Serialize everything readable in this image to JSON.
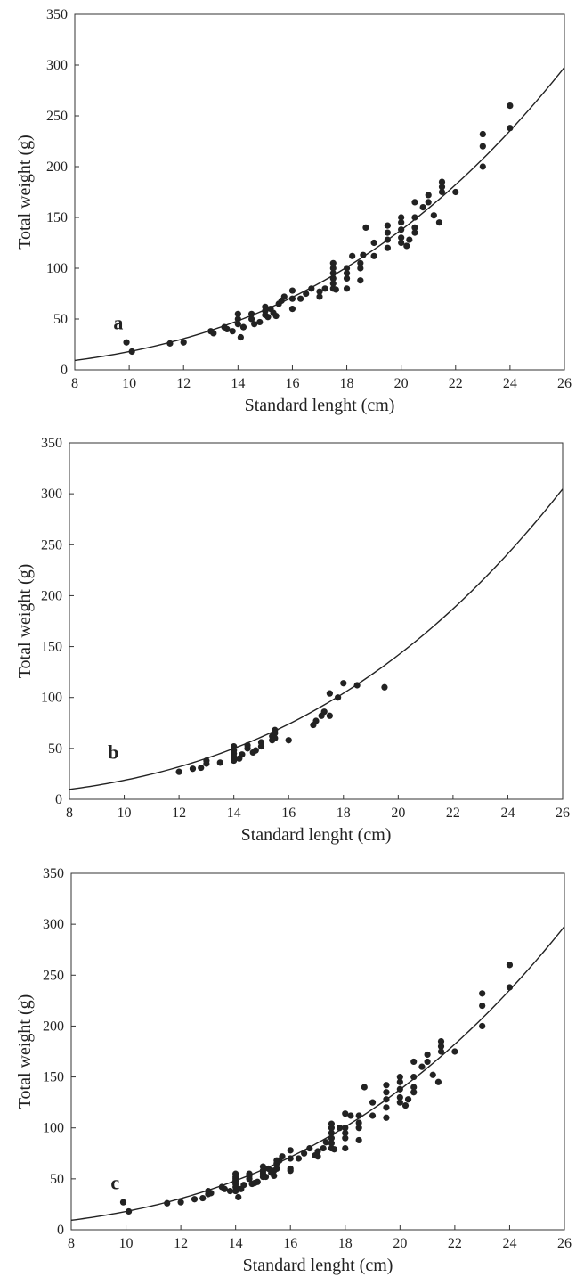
{
  "chart_data": [
    {
      "type": "scatter",
      "panel_label": "a",
      "xlabel": "Standard lenght (cm)",
      "ylabel": "Total weight (g)",
      "xlim": [
        8,
        26
      ],
      "ylim": [
        0,
        350
      ],
      "x_ticks": [
        8,
        10,
        12,
        14,
        16,
        18,
        20,
        22,
        24,
        26
      ],
      "y_ticks": [
        0,
        50,
        100,
        150,
        200,
        250,
        300,
        350
      ],
      "grid": false,
      "fit_curve": {
        "type": "power",
        "a": 0.0206,
        "b": 2.94
      },
      "points": [
        [
          9.9,
          27
        ],
        [
          10.1,
          18
        ],
        [
          11.5,
          26
        ],
        [
          12,
          27
        ],
        [
          13,
          38
        ],
        [
          13.1,
          36
        ],
        [
          13.5,
          42
        ],
        [
          13.6,
          40
        ],
        [
          13.8,
          38
        ],
        [
          14,
          45
        ],
        [
          14,
          50
        ],
        [
          14,
          55
        ],
        [
          14.1,
          32
        ],
        [
          14.2,
          42
        ],
        [
          14.5,
          50
        ],
        [
          14.5,
          55
        ],
        [
          14.6,
          45
        ],
        [
          14.8,
          47
        ],
        [
          15,
          54
        ],
        [
          15,
          58
        ],
        [
          15,
          62
        ],
        [
          15.1,
          52
        ],
        [
          15.2,
          60
        ],
        [
          15.3,
          56
        ],
        [
          15.4,
          53
        ],
        [
          15.5,
          65
        ],
        [
          15.6,
          68
        ],
        [
          15.7,
          72
        ],
        [
          16,
          60
        ],
        [
          16,
          70
        ],
        [
          16,
          78
        ],
        [
          16.3,
          70
        ],
        [
          16.5,
          75
        ],
        [
          16.7,
          80
        ],
        [
          17,
          72
        ],
        [
          17,
          77
        ],
        [
          17.2,
          80
        ],
        [
          17.5,
          80
        ],
        [
          17.5,
          85
        ],
        [
          17.5,
          90
        ],
        [
          17.5,
          95
        ],
        [
          17.5,
          100
        ],
        [
          17.5,
          105
        ],
        [
          17.6,
          79
        ],
        [
          18,
          80
        ],
        [
          18,
          90
        ],
        [
          18,
          95
        ],
        [
          18,
          100
        ],
        [
          18.2,
          112
        ],
        [
          18.5,
          88
        ],
        [
          18.5,
          100
        ],
        [
          18.5,
          105
        ],
        [
          18.6,
          113
        ],
        [
          18.7,
          140
        ],
        [
          19,
          112
        ],
        [
          19,
          125
        ],
        [
          19.5,
          120
        ],
        [
          19.5,
          128
        ],
        [
          19.5,
          135
        ],
        [
          19.5,
          142
        ],
        [
          20,
          125
        ],
        [
          20,
          130
        ],
        [
          20,
          138
        ],
        [
          20,
          145
        ],
        [
          20,
          150
        ],
        [
          20.2,
          122
        ],
        [
          20.3,
          128
        ],
        [
          20.5,
          135
        ],
        [
          20.5,
          140
        ],
        [
          20.5,
          150
        ],
        [
          20.5,
          165
        ],
        [
          20.8,
          160
        ],
        [
          21,
          165
        ],
        [
          21,
          172
        ],
        [
          21.2,
          152
        ],
        [
          21.4,
          145
        ],
        [
          21.5,
          175
        ],
        [
          21.5,
          180
        ],
        [
          21.5,
          185
        ],
        [
          22,
          175
        ],
        [
          23,
          200
        ],
        [
          23,
          220
        ],
        [
          23,
          232
        ],
        [
          24,
          238
        ],
        [
          24,
          260
        ]
      ]
    },
    {
      "type": "scatter",
      "panel_label": "b",
      "xlabel": "Standard lenght (cm)",
      "ylabel": "Total weight (g)",
      "xlim": [
        8,
        26
      ],
      "ylim": [
        0,
        350
      ],
      "x_ticks": [
        8,
        10,
        12,
        14,
        16,
        18,
        20,
        22,
        24,
        26
      ],
      "y_ticks": [
        0,
        50,
        100,
        150,
        200,
        250,
        300,
        350
      ],
      "grid": false,
      "fit_curve": {
        "type": "power",
        "a": 0.0225,
        "b": 2.92
      },
      "points": [
        [
          12,
          27
        ],
        [
          12.5,
          30
        ],
        [
          12.8,
          31
        ],
        [
          13,
          35
        ],
        [
          13,
          38
        ],
        [
          13.5,
          36
        ],
        [
          14,
          38
        ],
        [
          14,
          42
        ],
        [
          14,
          45
        ],
        [
          14,
          48
        ],
        [
          14,
          52
        ],
        [
          14.2,
          40
        ],
        [
          14.3,
          44
        ],
        [
          14.5,
          50
        ],
        [
          14.5,
          53
        ],
        [
          14.7,
          46
        ],
        [
          14.8,
          48
        ],
        [
          15,
          52
        ],
        [
          15,
          56
        ],
        [
          15.4,
          58
        ],
        [
          15.4,
          62
        ],
        [
          15.5,
          60
        ],
        [
          15.5,
          65
        ],
        [
          15.5,
          68
        ],
        [
          16,
          58
        ],
        [
          16.9,
          73
        ],
        [
          17,
          77
        ],
        [
          17.2,
          82
        ],
        [
          17.3,
          86
        ],
        [
          17.5,
          82
        ],
        [
          17.5,
          104
        ],
        [
          17.8,
          100
        ],
        [
          18,
          114
        ],
        [
          18.5,
          112
        ],
        [
          19.5,
          110
        ]
      ]
    },
    {
      "type": "scatter",
      "panel_label": "c",
      "xlabel": "Standard lenght (cm)",
      "ylabel": "Total weight (g)",
      "xlim": [
        8,
        26
      ],
      "ylim": [
        0,
        350
      ],
      "x_ticks": [
        8,
        10,
        12,
        14,
        16,
        18,
        20,
        22,
        24,
        26
      ],
      "y_ticks": [
        0,
        50,
        100,
        150,
        200,
        250,
        300,
        350
      ],
      "grid": false,
      "fit_curve": {
        "type": "power",
        "a": 0.0206,
        "b": 2.94
      },
      "points": [
        [
          9.9,
          27
        ],
        [
          10.1,
          18
        ],
        [
          11.5,
          26
        ],
        [
          12,
          27
        ],
        [
          12.5,
          30
        ],
        [
          12.8,
          31
        ],
        [
          13,
          35
        ],
        [
          13,
          38
        ],
        [
          13.1,
          36
        ],
        [
          13.5,
          42
        ],
        [
          13.6,
          40
        ],
        [
          13.8,
          38
        ],
        [
          14,
          38
        ],
        [
          14,
          42
        ],
        [
          14,
          45
        ],
        [
          14,
          48
        ],
        [
          14,
          50
        ],
        [
          14,
          52
        ],
        [
          14,
          55
        ],
        [
          14.1,
          32
        ],
        [
          14.2,
          40
        ],
        [
          14.3,
          44
        ],
        [
          14.5,
          50
        ],
        [
          14.5,
          53
        ],
        [
          14.5,
          55
        ],
        [
          14.6,
          45
        ],
        [
          14.7,
          46
        ],
        [
          14.8,
          47
        ],
        [
          15,
          52
        ],
        [
          15,
          54
        ],
        [
          15,
          56
        ],
        [
          15,
          58
        ],
        [
          15,
          62
        ],
        [
          15.1,
          52
        ],
        [
          15.2,
          60
        ],
        [
          15.3,
          56
        ],
        [
          15.4,
          53
        ],
        [
          15.4,
          58
        ],
        [
          15.5,
          60
        ],
        [
          15.5,
          65
        ],
        [
          15.5,
          68
        ],
        [
          15.6,
          68
        ],
        [
          15.7,
          72
        ],
        [
          16,
          58
        ],
        [
          16,
          60
        ],
        [
          16,
          70
        ],
        [
          16,
          78
        ],
        [
          16.3,
          70
        ],
        [
          16.5,
          75
        ],
        [
          16.7,
          80
        ],
        [
          16.9,
          73
        ],
        [
          17,
          72
        ],
        [
          17,
          77
        ],
        [
          17.2,
          80
        ],
        [
          17.3,
          86
        ],
        [
          17.5,
          80
        ],
        [
          17.5,
          85
        ],
        [
          17.5,
          90
        ],
        [
          17.5,
          95
        ],
        [
          17.5,
          100
        ],
        [
          17.5,
          104
        ],
        [
          17.6,
          79
        ],
        [
          17.8,
          100
        ],
        [
          18,
          80
        ],
        [
          18,
          90
        ],
        [
          18,
          95
        ],
        [
          18,
          100
        ],
        [
          18,
          114
        ],
        [
          18.2,
          112
        ],
        [
          18.5,
          88
        ],
        [
          18.5,
          100
        ],
        [
          18.5,
          105
        ],
        [
          18.5,
          112
        ],
        [
          18.7,
          140
        ],
        [
          19,
          112
        ],
        [
          19,
          125
        ],
        [
          19.5,
          110
        ],
        [
          19.5,
          120
        ],
        [
          19.5,
          128
        ],
        [
          19.5,
          135
        ],
        [
          19.5,
          142
        ],
        [
          20,
          125
        ],
        [
          20,
          130
        ],
        [
          20,
          138
        ],
        [
          20,
          145
        ],
        [
          20,
          150
        ],
        [
          20.2,
          122
        ],
        [
          20.3,
          128
        ],
        [
          20.5,
          135
        ],
        [
          20.5,
          140
        ],
        [
          20.5,
          150
        ],
        [
          20.5,
          165
        ],
        [
          20.8,
          160
        ],
        [
          21,
          165
        ],
        [
          21,
          172
        ],
        [
          21.2,
          152
        ],
        [
          21.4,
          145
        ],
        [
          21.5,
          175
        ],
        [
          21.5,
          180
        ],
        [
          21.5,
          185
        ],
        [
          22,
          175
        ],
        [
          23,
          200
        ],
        [
          23,
          220
        ],
        [
          23,
          232
        ],
        [
          24,
          238
        ],
        [
          24,
          260
        ]
      ]
    }
  ]
}
